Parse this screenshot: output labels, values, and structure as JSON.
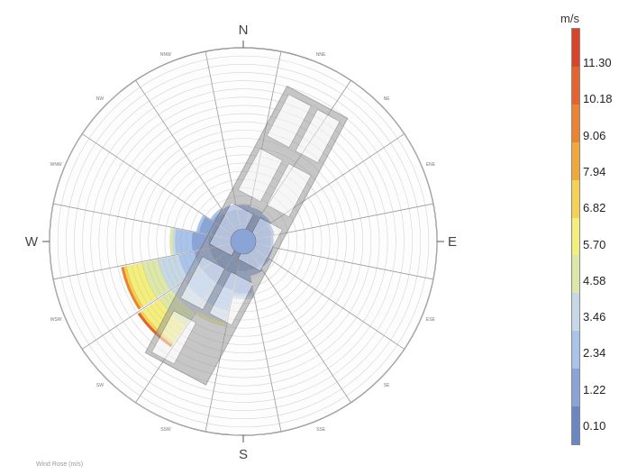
{
  "chart_data": {
    "type": "polar-bar",
    "title": "",
    "unit_label": "m/s",
    "directions_main": [
      "N",
      "E",
      "S",
      "W"
    ],
    "directions_sub": [
      "NNE",
      "NE",
      "ENE",
      "ESE",
      "SE",
      "SSE",
      "SSW",
      "SW",
      "WSW",
      "WNW",
      "NW",
      "NNW"
    ],
    "legend": {
      "ticks": [
        "11.30",
        "10.18",
        "9.06",
        "7.94",
        "6.82",
        "5.70",
        "4.58",
        "3.46",
        "2.34",
        "1.22",
        "0.10"
      ],
      "colors": [
        "#d8432a",
        "#e4632e",
        "#ea8433",
        "#f0a83c",
        "#f6d254",
        "#f4ee7c",
        "#dde8a8",
        "#c6d8e6",
        "#a8c4ea",
        "#8aa4d8",
        "#6a86c4"
      ]
    },
    "bars": [
      {
        "direction": "SW",
        "value": 7.2
      },
      {
        "direction": "WSW",
        "value": 7.0
      },
      {
        "direction": "SSW",
        "value": 4.6
      },
      {
        "direction": "W",
        "value": 3.8
      },
      {
        "direction": "S",
        "value": 2.8
      },
      {
        "direction": "WNW",
        "value": 2.2
      },
      {
        "direction": "NW",
        "value": 1.7
      },
      {
        "direction": "NNW",
        "value": 1.6
      },
      {
        "direction": "N",
        "value": 1.5
      },
      {
        "direction": "NNE",
        "value": 1.4
      },
      {
        "direction": "NE",
        "value": 1.3
      },
      {
        "direction": "ENE",
        "value": 1.2
      },
      {
        "direction": "E",
        "value": 1.1
      },
      {
        "direction": "ESE",
        "value": 1.1
      },
      {
        "direction": "SE",
        "value": 1.2
      },
      {
        "direction": "SSE",
        "value": 1.4
      }
    ],
    "rmax": 11.3
  },
  "caption": "Wind Rose (m/s)"
}
